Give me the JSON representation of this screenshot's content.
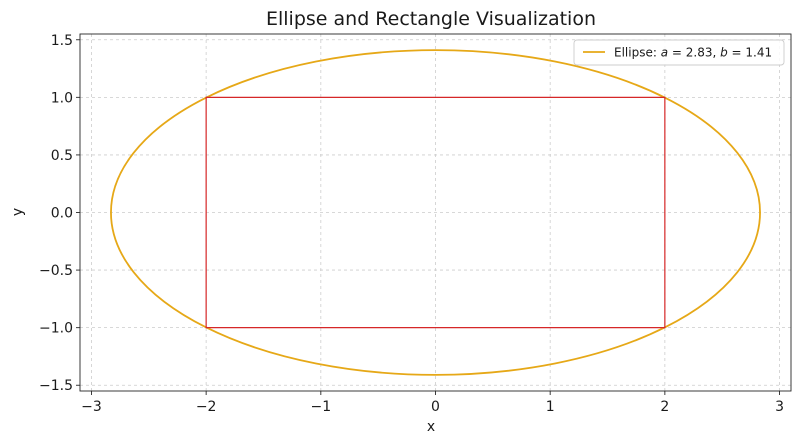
{
  "chart_data": {
    "type": "line",
    "title": "Ellipse and Rectangle Visualization",
    "xlabel": "x",
    "ylabel": "y",
    "xlim": [
      -3.1,
      3.1
    ],
    "ylim": [
      -1.55,
      1.55
    ],
    "x_ticks": [
      -3,
      -2,
      -1,
      0,
      1,
      2,
      3
    ],
    "x_tick_labels": [
      "−3",
      "−2",
      "−1",
      "0",
      "1",
      "2",
      "3"
    ],
    "y_ticks": [
      -1.5,
      -1.0,
      -0.5,
      0.0,
      0.5,
      1.0,
      1.5
    ],
    "y_tick_labels": [
      "−1.5",
      "−1.0",
      "−0.5",
      "0.0",
      "0.5",
      "1.0",
      "1.5"
    ],
    "grid": true,
    "legend_position": "top-right",
    "series": [
      {
        "name": "Ellipse: a = 2.83, b = 1.41",
        "kind": "ellipse",
        "center": [
          0,
          0
        ],
        "a": 2.83,
        "b": 1.41,
        "color": "#e6a817"
      },
      {
        "kind": "rectangle",
        "vertices": [
          [
            -2,
            -1
          ],
          [
            2,
            -1
          ],
          [
            2,
            1
          ],
          [
            -2,
            1
          ]
        ],
        "color": "#d62728"
      }
    ],
    "legend": {
      "prefix": "Ellipse: ",
      "a_symbol": "a",
      "a_value": " = 2.83, ",
      "b_symbol": "b",
      "b_value": " = 1.41"
    }
  }
}
